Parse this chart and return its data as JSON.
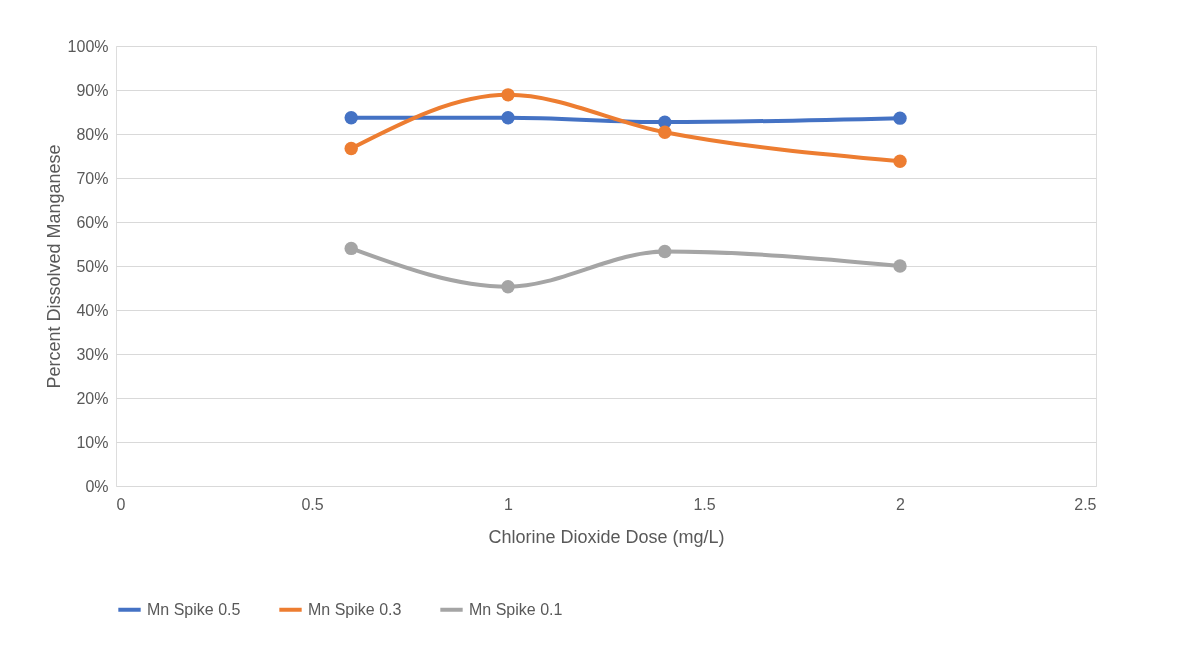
{
  "chart_data": {
    "type": "line",
    "xlabel": "Chlorine Dioxide Dose (mg/L)",
    "ylabel": "Percent Dissolved Manganese",
    "x": [
      0.6,
      1,
      1.4,
      2
    ],
    "series": [
      {
        "name": "Mn Spike 0.5",
        "color": "#4472c4",
        "values": [
          83.7,
          83.7,
          82.7,
          83.6
        ]
      },
      {
        "name": "Mn Spike 0.3",
        "color": "#ed7d31",
        "values": [
          76.7,
          88.9,
          80.4,
          73.8
        ]
      },
      {
        "name": "Mn Spike 0.1",
        "color": "#a5a5a5",
        "values": [
          54.0,
          45.3,
          53.3,
          50.0
        ]
      }
    ],
    "xlim": [
      0,
      2.5
    ],
    "xticks": [
      0,
      0.5,
      1,
      1.5,
      2,
      2.5
    ],
    "ylim": [
      0,
      100
    ],
    "yticks": [
      {
        "value": 0,
        "label": "0%"
      },
      {
        "value": 10,
        "label": "10%"
      },
      {
        "value": 20,
        "label": "20%"
      },
      {
        "value": 30,
        "label": "30%"
      },
      {
        "value": 40,
        "label": "40%"
      },
      {
        "value": 50,
        "label": "50%"
      },
      {
        "value": 60,
        "label": "60%"
      },
      {
        "value": 70,
        "label": "70%"
      },
      {
        "value": 80,
        "label": "80%"
      },
      {
        "value": 90,
        "label": "90%"
      },
      {
        "value": 100,
        "label": "100%"
      }
    ],
    "grid": "y",
    "legend": "bottom",
    "marker": "circle",
    "line_style": "solid"
  }
}
